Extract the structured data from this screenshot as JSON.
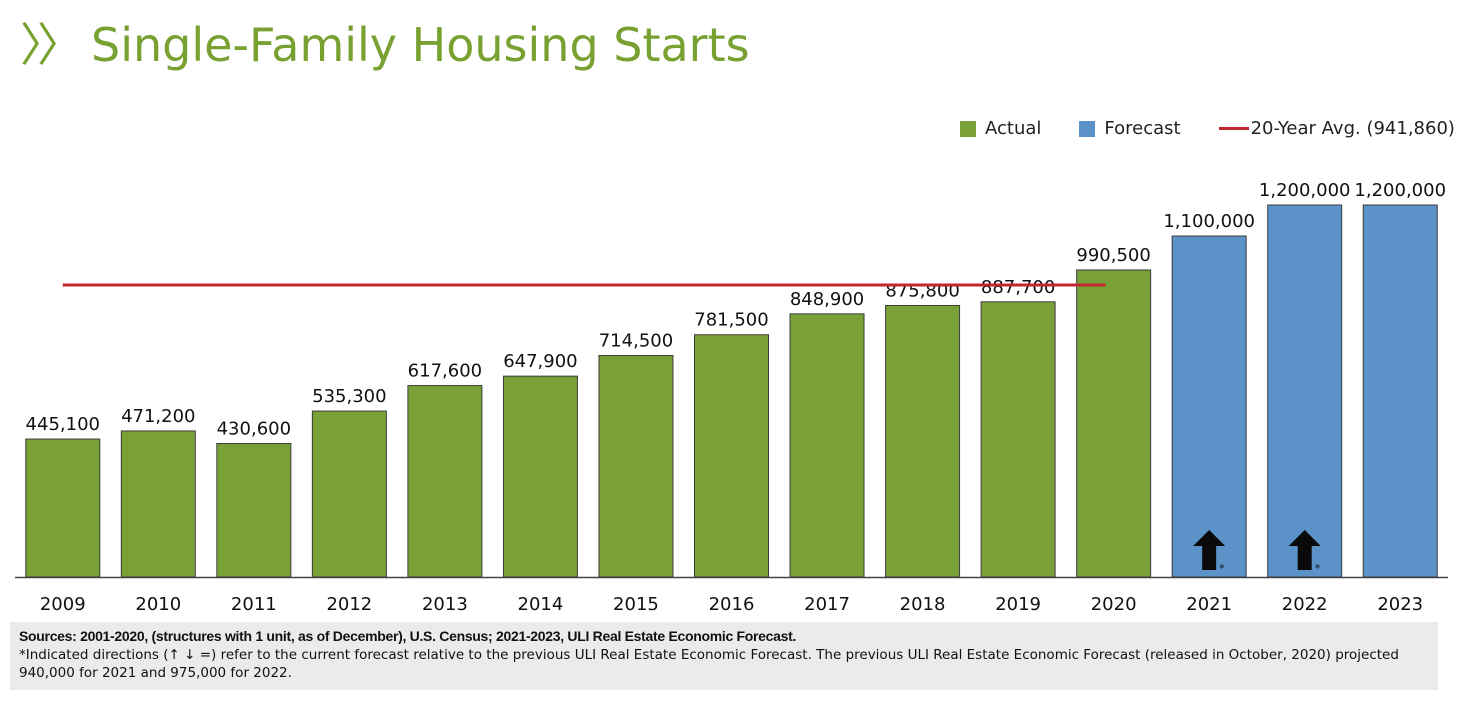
{
  "header": {
    "title": "Single-Family Housing Starts",
    "chevron": "〉〉"
  },
  "legend": {
    "actual": "Actual",
    "forecast": "Forecast",
    "average": "20-Year Avg. (941,860)"
  },
  "colors": {
    "actual": "#7aa137",
    "forecast": "#5b93c8",
    "average": "#c0282d",
    "title": "#78a132"
  },
  "footer": {
    "sources": "Sources: 2001-2020, (structures with 1 unit, as of December), U.S. Census; 2021-2023, ULI Real Estate Economic Forecast.",
    "note": "*Indicated directions (↑ ↓ =) refer to the current forecast relative to the previous ULI Real Estate Economic Forecast. The previous ULI Real Estate Economic Forecast (released in October, 2020) projected 940,000 for 2021 and 975,000 for 2022."
  },
  "chart_data": {
    "type": "bar",
    "title": "Single-Family Housing Starts",
    "categories": [
      "2009",
      "2010",
      "2011",
      "2012",
      "2013",
      "2014",
      "2015",
      "2016",
      "2017",
      "2018",
      "2019",
      "2020",
      "2021",
      "2022",
      "2023"
    ],
    "values": [
      445100,
      471200,
      430600,
      535300,
      617600,
      647900,
      714500,
      781500,
      848900,
      875800,
      887700,
      990500,
      1100000,
      1200000,
      1200000
    ],
    "labels": [
      "445,100",
      "471,200",
      "430,600",
      "535,300",
      "617,600",
      "647,900",
      "714,500",
      "781,500",
      "848,900",
      "875,800",
      "887,700",
      "990,500",
      "1,100,000",
      "1,200,000",
      "1,200,000"
    ],
    "series_type": [
      "actual",
      "actual",
      "actual",
      "actual",
      "actual",
      "actual",
      "actual",
      "actual",
      "actual",
      "actual",
      "actual",
      "actual",
      "forecast",
      "forecast",
      "forecast"
    ],
    "reference_line": {
      "name": "20-Year Avg. (941,860)",
      "value": 941860,
      "from": "2009",
      "to": "2020"
    },
    "indicators": [
      {
        "category": "2021",
        "direction": "up",
        "mark": "*"
      },
      {
        "category": "2022",
        "direction": "up",
        "mark": "*"
      }
    ],
    "xlabel": "",
    "ylabel": "",
    "ylim": [
      0,
      1200000
    ],
    "grid": false,
    "legend": "top-right"
  }
}
